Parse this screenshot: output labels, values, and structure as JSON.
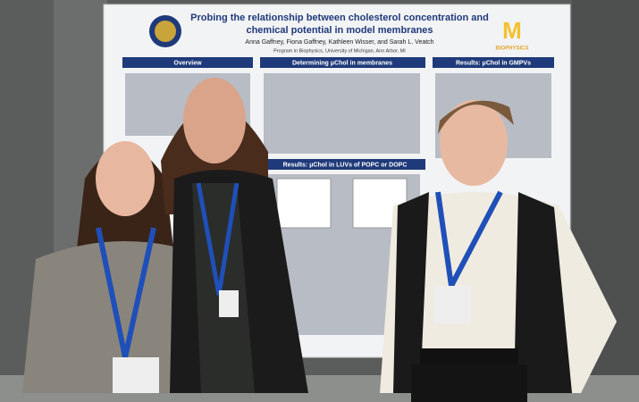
{
  "poster": {
    "title_line1": "Probing the relationship between cholesterol concentration and",
    "title_line2": "chemical potential in model membranes",
    "authors": "Anna Gaffney, Fiona Gaffney, Kathleen Wisser, and Sarah L. Veatch",
    "affiliation": "Program in Biophysics, University of Michigan, Ann Arbor, MI",
    "logo_text": "BIOPHYSICS",
    "sections": [
      "Overview",
      "Determining μChol in membranes",
      "Results: μChol in GMPVs",
      "Results: μChol in LUVs of POPC or DOPC"
    ]
  }
}
